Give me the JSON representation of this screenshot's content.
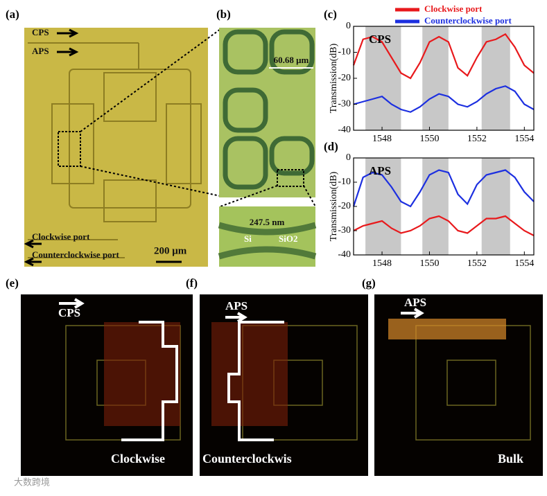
{
  "panel_labels": [
    "(a)",
    "(b)",
    "(c)",
    "(d)",
    "(e)",
    "(f)",
    "(g)"
  ],
  "panel_a": {
    "cps": "CPS",
    "aps": "APS",
    "clockwise_port": "Clockwise port",
    "counterclockwise_port": "Counterclockwise port",
    "scale_bar": "200 μm"
  },
  "panel_b": {
    "ring_width": "60.68 μm",
    "gap": "247.5 nm",
    "si": "Si",
    "sio2": "SiO2"
  },
  "panel_e": {
    "input": "CPS",
    "caption": "Clockwise"
  },
  "panel_f": {
    "input": "APS",
    "caption": "Counterclockwis"
  },
  "panel_g": {
    "input": "APS",
    "caption": "Bulk"
  },
  "watermark": "大数跨境",
  "chart_data": [
    {
      "type": "line",
      "annotation": "CPS",
      "y_label": "Transmission(dB)",
      "legend": true,
      "x": [
        1546.8,
        1547.2,
        1547.6,
        1548.0,
        1548.4,
        1548.8,
        1549.2,
        1549.6,
        1550.0,
        1550.4,
        1550.8,
        1551.2,
        1551.6,
        1552.0,
        1552.4,
        1552.8,
        1553.2,
        1553.6,
        1554.0,
        1554.4
      ],
      "series": [
        {
          "name": "Clockwise port",
          "color": "#e8191c",
          "values": [
            -15,
            -5,
            -4,
            -6,
            -12,
            -18,
            -20,
            -14,
            -6,
            -4,
            -6,
            -16,
            -19,
            -12,
            -6,
            -5,
            -3,
            -8,
            -15,
            -18
          ]
        },
        {
          "name": "Counterclockwise port",
          "color": "#1c2fe0",
          "values": [
            -30,
            -29,
            -28,
            -27,
            -30,
            -32,
            -33,
            -31,
            -28,
            -26,
            -27,
            -30,
            -31,
            -29,
            -26,
            -24,
            -23,
            -25,
            -30,
            -32
          ]
        }
      ],
      "bands": [
        [
          1547.3,
          1548.8
        ],
        [
          1549.7,
          1550.8
        ],
        [
          1552.2,
          1553.4
        ]
      ],
      "xlim": [
        1546.8,
        1554.4
      ],
      "xticks": [
        1548,
        1550,
        1552,
        1554
      ],
      "ylim": [
        -40,
        0
      ],
      "yticks": [
        -40,
        -30,
        -20,
        -10,
        0
      ]
    },
    {
      "type": "line",
      "annotation": "APS",
      "y_label": "Transmission(dB)",
      "legend": false,
      "x": [
        1546.8,
        1547.2,
        1547.6,
        1548.0,
        1548.4,
        1548.8,
        1549.2,
        1549.6,
        1550.0,
        1550.4,
        1550.8,
        1551.2,
        1551.6,
        1552.0,
        1552.4,
        1552.8,
        1553.2,
        1553.6,
        1554.0,
        1554.4
      ],
      "series": [
        {
          "name": "Clockwise port",
          "color": "#e8191c",
          "values": [
            -30,
            -28,
            -27,
            -26,
            -29,
            -31,
            -30,
            -28,
            -25,
            -24,
            -26,
            -30,
            -31,
            -28,
            -25,
            -25,
            -24,
            -27,
            -30,
            -32
          ]
        },
        {
          "name": "Counterclockwise port",
          "color": "#1c2fe0",
          "values": [
            -20,
            -8,
            -6,
            -7,
            -12,
            -18,
            -20,
            -14,
            -7,
            -5,
            -6,
            -15,
            -19,
            -11,
            -7,
            -6,
            -5,
            -8,
            -14,
            -18
          ]
        }
      ],
      "bands": [
        [
          1547.3,
          1548.8
        ],
        [
          1549.7,
          1550.8
        ],
        [
          1552.2,
          1553.4
        ]
      ],
      "xlim": [
        1546.8,
        1554.4
      ],
      "xticks": [
        1548,
        1550,
        1552,
        1554
      ],
      "ylim": [
        -40,
        0
      ],
      "yticks": [
        -40,
        -30,
        -20,
        -10,
        0
      ]
    }
  ]
}
